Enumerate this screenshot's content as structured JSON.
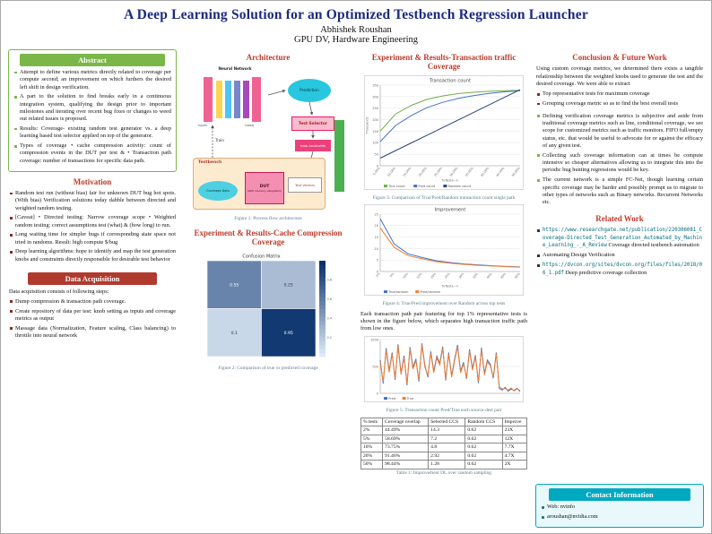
{
  "header": {
    "title": "A Deep Learning Solution for an Optimized Testbench Regression Launcher",
    "author": "Abhishek Roushan",
    "affiliation": "GPU DV, Hardware Engineering"
  },
  "abstract": {
    "heading": "Abstract",
    "items": [
      "Attempt to define various metrics directly related to coverage per compute second; an improvement on which furthers the desired left shift in design verification.",
      "A part to the solution to find breaks early in a continuous integration system, qualifying the design prior to important milestones and iterating over recent bug fixes or changes to weed out related issues is proposed.",
      "Results: Coverage- existing random test generator vs. a deep learning based test selector applied on top of the generator.",
      "Types of coverage • cache compression activity: count of compression events in the DUT per test & • Transaction path coverage: number of transactions for specific data path."
    ]
  },
  "motivation": {
    "heading": "Motivation",
    "items": [
      "Random test run (without bias) fair for unknown DUT bug hot spots. (With bias) Verification solutions today dabble between directed and weighted random testing.",
      "[Caveat] • Directed testing: Narrow coverage scope • Weighted random testing: correct assumptions test (what) & (how long) to run.",
      "Long waiting time for simpler bugs if corresponding state space not tried in randoms. Result: high compute $/bug",
      "Deep learning algorithms: hope to identify and map the test generation knobs and constraints directly responsible for desirable test behavior"
    ]
  },
  "data_acquisition": {
    "heading": "Data Acquisition",
    "intro": "Data acquisition consists of following steps:",
    "items": [
      "Dump compression & transaction path coverage.",
      "Create repository of data per test: knob setting as inputs and coverage metrics as output",
      "Massage data (Normalization, Feature scaling, Class balancing) to throttle into neural network"
    ]
  },
  "architecture": {
    "heading": "Architecture",
    "caption": "Figure 1: Process flow architecture",
    "labels": {
      "neural_network": "Neural Network",
      "inputs": "Inputs",
      "labels": "Labels",
      "prediction": "Prediction",
      "train": "Train",
      "test_selector": "Test Selector",
      "knob_constraints": "knob constraints",
      "testbench": "Testbench",
      "coverage_data": "Coverage Data",
      "dut": "DUT",
      "dut_sub": "(GPU memory subsystem)",
      "test_vectors": "Test Vectors"
    }
  },
  "cache_section": {
    "heading": "Experiment & Results-Cache Compression Coverage",
    "caption": "Figure 2: Comparison of true vs predicted coverage"
  },
  "transaction_section": {
    "heading": "Experiment & Results-Transaction traffic Coverage",
    "fig3_caption": "Figure 3: Comparison of True/Pred/Random transaction count single path",
    "fig4_caption": "Figure 4: True/Pred improvement over Random across top tests",
    "paragraph": "Each transaction path pair featuring for top 1% representative tests is shown in the figure below, which separates high transaction traffic path from low ones.",
    "fig5_caption": "Figure 5: Transaction count Pred/True each source-dest pair",
    "table_caption": "Table 1: Improvement DL over random sampling"
  },
  "table1": {
    "headers": [
      "% tests",
      "Coverage overlap",
      "Selected CCS",
      "Random CCS",
      "Improve"
    ],
    "rows": [
      [
        "2%",
        "44.49%",
        "14.3",
        "0.62",
        "23X"
      ],
      [
        "5%",
        "58.69%",
        "7.2",
        "0.62",
        "12X"
      ],
      [
        "10%",
        "73.75%",
        "4.8",
        "0.62",
        "7.7X"
      ],
      [
        "20%",
        "91.46%",
        "2.92",
        "0.62",
        "4.7X"
      ],
      [
        "50%",
        "98.44%",
        "1.28",
        "0.62",
        "2X"
      ]
    ]
  },
  "conclusion": {
    "heading": "Conclusion & Future Work",
    "intro": "Using custom coverage metrics, we determined there exists a tangible relationship between the weighted knobs used to generate the test and the desired coverage. We were able to extract",
    "items": [
      "Top representative tests for maximum coverage",
      "Grouping coverage metric so as to find the best overall tests"
    ],
    "future_items": [
      "Defining verification coverage metrics is subjective and aside from traditional coverage metrics such as line, conditional coverage, we see scope for customized metrics such as traffic monitors. FIFO full/empty status, etc. that would be useful to advocate for or against the efficacy of any given test.",
      "Collecting such coverage information can at times be compute intensive so cheaper alternatives allowing us to integrate this into the periodic bug hunting regressions would be key.",
      "The current network is a simple FC-Net, though learning certain specific coverage may be harder and possibly prompt us to migrate to other types of networks such as Binary networks. Recurrent Networks etc."
    ]
  },
  "related_work": {
    "heading": "Related Work",
    "items": [
      {
        "url": "https://www.researchgate.net/publication/220306081_Coverage-Directed_Test_Generation_Automated_by_Machine_Learning_-_A_Review",
        "text": " Coverage directed testbench automation"
      },
      {
        "url": "",
        "text": "Automating Design Verification"
      },
      {
        "url": "https://dvcon.org/sites/dvcon.org/files/files/2018/06_1.pdf",
        "text": " Deep predictive coverage collection"
      }
    ]
  },
  "contact": {
    "heading": "Contact Information",
    "items": [
      "Web: nvinfo",
      "aroushan@nvidia.com"
    ]
  },
  "chart_data": [
    {
      "id": "fig2",
      "type": "heatmap",
      "title": "Confusion Matrix",
      "values": [
        [
          0.55,
          0.25
        ],
        [
          0.1,
          0.95
        ]
      ],
      "colorbar_ticks": [
        "0.8",
        "0.6",
        "0.4",
        "0.2"
      ]
    },
    {
      "id": "fig3",
      "type": "line",
      "title": "Transaction count",
      "ylabel": "Thousands",
      "xlabel": "%Tests-->",
      "x_ticks": [
        "5.00%",
        "10.00%",
        "15.00%",
        "20.00%",
        "25.00%",
        "30.00%",
        "35.00%",
        "40.00%",
        "45.00%",
        "50.00%"
      ],
      "ylim": [
        0,
        350
      ],
      "y_ticks": [
        0,
        50,
        100,
        150,
        200,
        250,
        300,
        350
      ],
      "series": [
        {
          "name": "True count",
          "color": "#70ad47",
          "values": [
            150,
            225,
            262,
            288,
            303,
            313,
            319,
            323,
            326,
            328
          ]
        },
        {
          "name": "Pred count",
          "color": "#4472c4",
          "values": [
            105,
            175,
            218,
            252,
            275,
            292,
            304,
            314,
            321,
            326
          ]
        },
        {
          "name": "Random count",
          "color": "#264478",
          "values": [
            33,
            66,
            99,
            132,
            165,
            198,
            231,
            264,
            297,
            330
          ]
        }
      ]
    },
    {
      "id": "fig4",
      "type": "line",
      "title": "Improvement",
      "xlabel": "%Tests-->",
      "x_ticks": [
        "2%",
        "5%",
        "10%",
        "15%",
        "20%",
        "25%",
        "30%",
        "35%",
        "40%",
        "45%",
        "50%"
      ],
      "ylim": [
        0,
        25
      ],
      "y_ticks": [
        0,
        5,
        10,
        15,
        20,
        25
      ],
      "series": [
        {
          "name": "True/random",
          "color": "#4472c4",
          "values": [
            23,
            12,
            7.7,
            6.1,
            4.7,
            3.9,
            3.3,
            2.9,
            2.5,
            2.2,
            2.0
          ]
        },
        {
          "name": "Pred/random",
          "color": "#ed7d31",
          "values": [
            19,
            10.5,
            6.9,
            5.5,
            4.3,
            3.6,
            3.1,
            2.7,
            2.4,
            2.1,
            1.9
          ]
        }
      ]
    },
    {
      "id": "fig5",
      "type": "line",
      "title": "",
      "ylim": [
        0,
        1000
      ],
      "y_ticks": [
        0,
        500,
        1000
      ],
      "series": [
        {
          "name": "Pred",
          "color": "#4472c4",
          "values": [
            620,
            180,
            840,
            420,
            760,
            250,
            910,
            380,
            700,
            150,
            860,
            480,
            640,
            220,
            930,
            520,
            300,
            780,
            410,
            690,
            560,
            870,
            240,
            760,
            330,
            640,
            900,
            410,
            580,
            270,
            820,
            460,
            710,
            190,
            850,
            370,
            620,
            540,
            280,
            760,
            90,
            60,
            110,
            40,
            80,
            55,
            95,
            30
          ]
        },
        {
          "name": "True",
          "color": "#ed7d31",
          "values": [
            580,
            210,
            800,
            390,
            730,
            280,
            880,
            350,
            670,
            180,
            830,
            450,
            610,
            250,
            900,
            490,
            330,
            750,
            380,
            660,
            530,
            840,
            270,
            730,
            300,
            610,
            870,
            380,
            550,
            300,
            790,
            430,
            680,
            220,
            820,
            340,
            590,
            510,
            310,
            730,
            120,
            80,
            90,
            60,
            100,
            45,
            85,
            50
          ]
        }
      ]
    }
  ]
}
